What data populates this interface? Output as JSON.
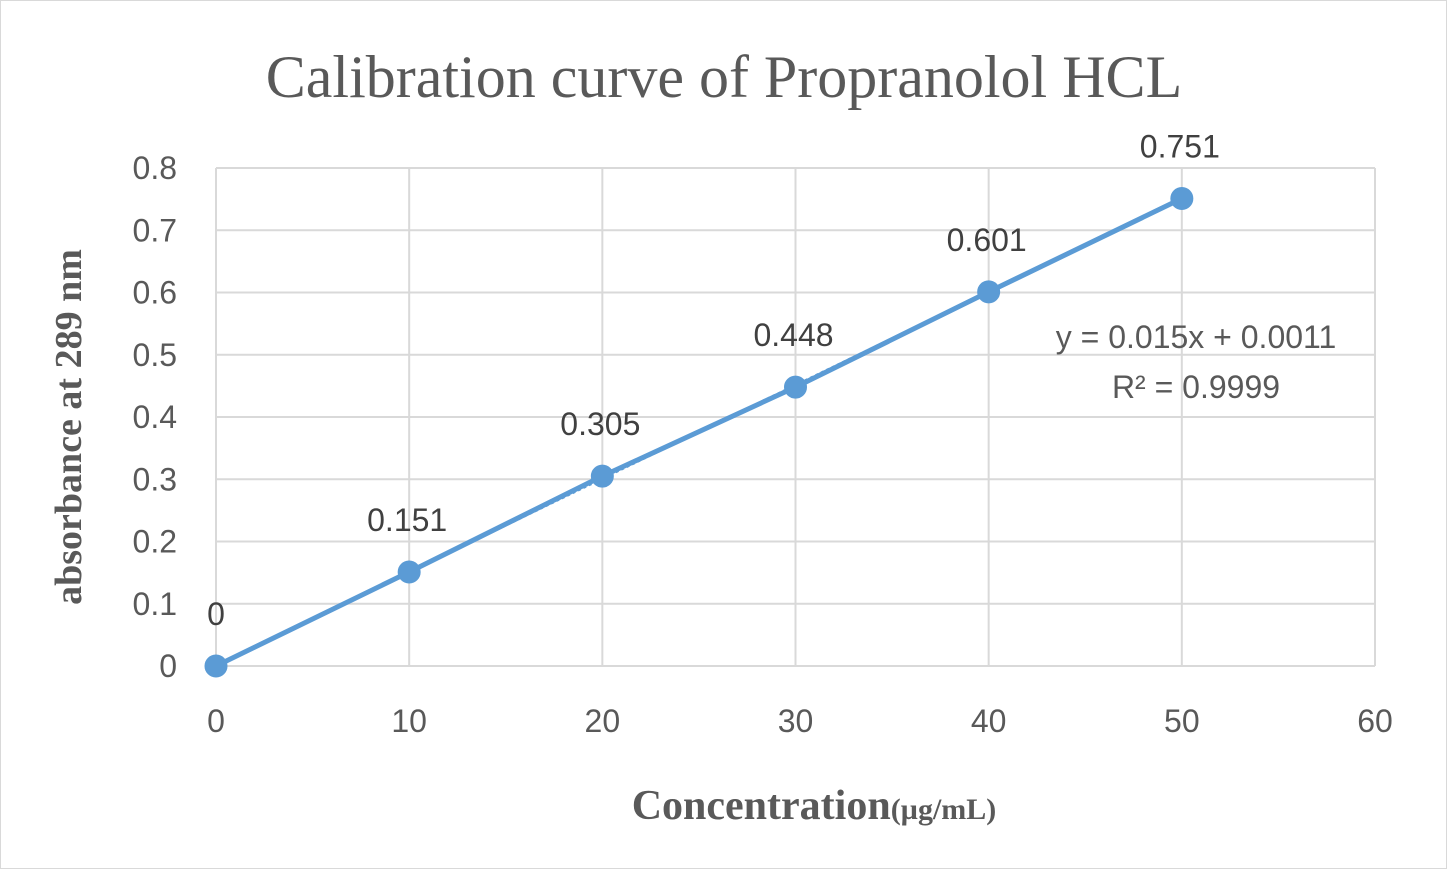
{
  "chart_data": {
    "type": "scatter",
    "title": "Calibration curve of Propranolol HCL",
    "xlabel": "Concentration",
    "xlabel_unit": "(µg/mL)",
    "ylabel": "absorbance  at 289 nm",
    "xlim": [
      0,
      60
    ],
    "ylim": [
      0,
      0.8
    ],
    "x_ticks": [
      "0",
      "10",
      "20",
      "30",
      "40",
      "50",
      "60"
    ],
    "y_ticks": [
      "0",
      "0.1",
      "0.2",
      "0.3",
      "0.4",
      "0.5",
      "0.6",
      "0.7",
      "0.8"
    ],
    "grid": true,
    "legend": "none",
    "series": [
      {
        "x": [
          0,
          10,
          20,
          30,
          40,
          50
        ],
        "values": [
          0,
          0.151,
          0.305,
          0.448,
          0.601,
          0.751
        ],
        "labels": [
          "0",
          "0.151",
          "0.305",
          "0.448",
          "0.601",
          "0.751"
        ],
        "color": "#5b9bd5"
      }
    ],
    "trendline": {
      "slope": 0.015,
      "intercept": 0.0011,
      "equation": "y = 0.015x + 0.0011",
      "r_squared": "R² = 0.9999",
      "style": "dotted"
    }
  }
}
